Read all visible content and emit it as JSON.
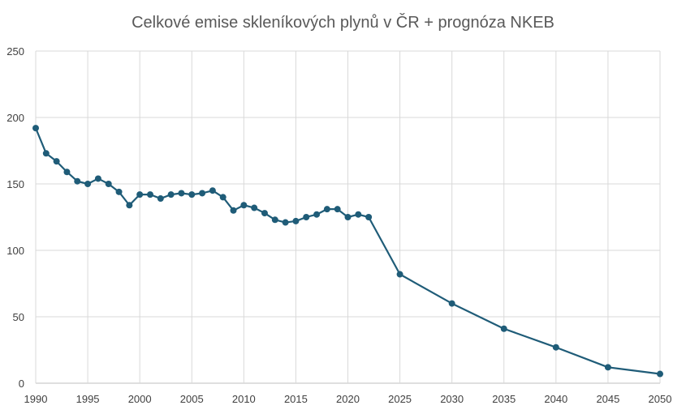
{
  "chart_data": {
    "type": "line",
    "title": "Celkové emise skleníkových plynů v ČR + prognóza NKEB",
    "xlabel": "",
    "ylabel": "",
    "xlim": [
      1990,
      2050
    ],
    "ylim": [
      0,
      250
    ],
    "y_ticks": [
      0,
      50,
      100,
      150,
      200,
      250
    ],
    "x_ticks": [
      1990,
      1995,
      2000,
      2005,
      2010,
      2015,
      2020,
      2025,
      2030,
      2035,
      2040,
      2045,
      2050
    ],
    "grid": true,
    "legend": "none",
    "series_color": "#1f5c78",
    "series": [
      {
        "x": [
          1990,
          1991,
          1992,
          1993,
          1994,
          1995,
          1996,
          1997,
          1998,
          1999,
          2000,
          2001,
          2002,
          2003,
          2004,
          2005,
          2006,
          2007,
          2008,
          2009,
          2010,
          2011,
          2012,
          2013,
          2014,
          2015,
          2016,
          2017,
          2018,
          2019,
          2020,
          2021,
          2022,
          2025,
          2030,
          2035,
          2040,
          2045,
          2050
        ],
        "values": [
          192,
          173,
          167,
          159,
          152,
          150,
          154,
          150,
          144,
          134,
          142,
          142,
          139,
          142,
          143,
          142,
          143,
          145,
          140,
          130,
          134,
          132,
          128,
          123,
          121,
          122,
          125,
          127,
          131,
          131,
          125,
          127,
          125,
          82,
          60,
          41,
          27,
          12,
          7
        ]
      }
    ]
  }
}
